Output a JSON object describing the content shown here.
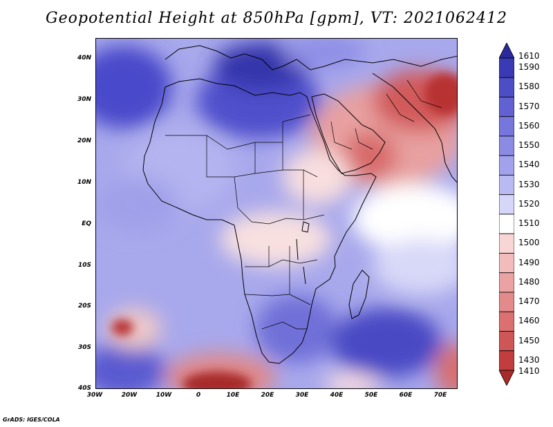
{
  "title": "Geopotential Height at 850hPa [gpm], VT: 2021062412",
  "credit": "GrADS: IGES/COLA",
  "map": {
    "lon_range": [
      -30,
      75
    ],
    "lat_range": [
      -40,
      45
    ],
    "lat_labels": [
      "40N",
      "30N",
      "20N",
      "10N",
      "EQ",
      "10S",
      "20S",
      "30S",
      "40S"
    ],
    "lon_labels": [
      "30W",
      "20W",
      "10W",
      "0",
      "10E",
      "20E",
      "30E",
      "40E",
      "50E",
      "60E",
      "70E"
    ]
  },
  "colorbar": {
    "levels": [
      "1610",
      "1590",
      "1580",
      "1570",
      "1560",
      "1550",
      "1540",
      "1530",
      "1520",
      "1510",
      "1500",
      "1490",
      "1480",
      "1470",
      "1460",
      "1450",
      "1430",
      "1410"
    ],
    "colors": [
      "#2a2a9c",
      "#3a3ab4",
      "#4d4dc6",
      "#6161d2",
      "#7676dc",
      "#8b8be4",
      "#a2a2ec",
      "#babaf2",
      "#d6d6f8",
      "#ffffff",
      "#f8d6d6",
      "#f2bcbc",
      "#eba2a2",
      "#e38a8a",
      "#da7070",
      "#cf5656",
      "#c23d3d",
      "#a82a2a"
    ]
  }
}
